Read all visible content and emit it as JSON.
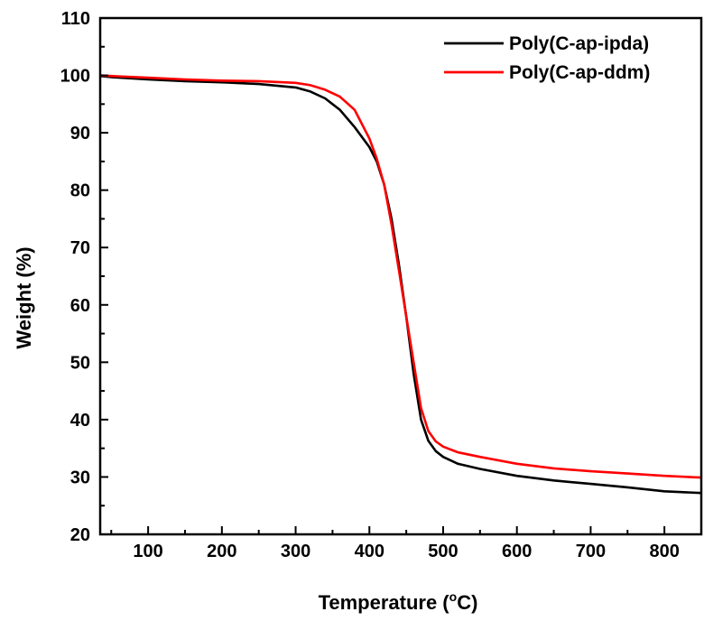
{
  "chart_data": {
    "type": "line",
    "xlabel_prefix": "Temperature (",
    "xlabel_sup": "o",
    "xlabel_suffix": "C)",
    "ylabel": "Weight (%)",
    "xlim": [
      35,
      850
    ],
    "ylim": [
      20,
      110
    ],
    "xticks": [
      100,
      200,
      300,
      400,
      500,
      600,
      700,
      800
    ],
    "yticks": [
      20,
      30,
      40,
      50,
      60,
      70,
      80,
      90,
      100,
      110
    ],
    "grid": false,
    "legend_position": "top-right",
    "series": [
      {
        "name": "Poly(C-ap-ipda)",
        "color": "#000000",
        "x": [
          35,
          50,
          100,
          150,
          200,
          250,
          300,
          320,
          340,
          360,
          380,
          400,
          410,
          420,
          430,
          440,
          450,
          460,
          470,
          480,
          490,
          500,
          520,
          550,
          600,
          650,
          700,
          750,
          800,
          850
        ],
        "y": [
          99.9,
          99.7,
          99.3,
          99.0,
          98.8,
          98.5,
          97.9,
          97.2,
          96.0,
          94.0,
          91.0,
          87.5,
          85.0,
          81.0,
          75.0,
          67.0,
          58.0,
          48.0,
          40.0,
          36.3,
          34.5,
          33.5,
          32.3,
          31.4,
          30.2,
          29.4,
          28.8,
          28.2,
          27.5,
          27.2
        ]
      },
      {
        "name": "Poly(C-ap-ddm)",
        "color": "#ff0000",
        "x": [
          35,
          50,
          100,
          150,
          200,
          250,
          300,
          320,
          340,
          360,
          380,
          400,
          410,
          420,
          430,
          440,
          450,
          460,
          470,
          480,
          490,
          500,
          520,
          550,
          600,
          650,
          700,
          750,
          800,
          850
        ],
        "y": [
          100.0,
          99.9,
          99.6,
          99.3,
          99.1,
          99.0,
          98.7,
          98.3,
          97.5,
          96.3,
          94.0,
          89.0,
          85.5,
          81.0,
          74.0,
          66.0,
          58.0,
          50.0,
          42.0,
          38.0,
          36.2,
          35.3,
          34.3,
          33.5,
          32.3,
          31.5,
          31.0,
          30.6,
          30.2,
          29.9
        ]
      }
    ]
  }
}
